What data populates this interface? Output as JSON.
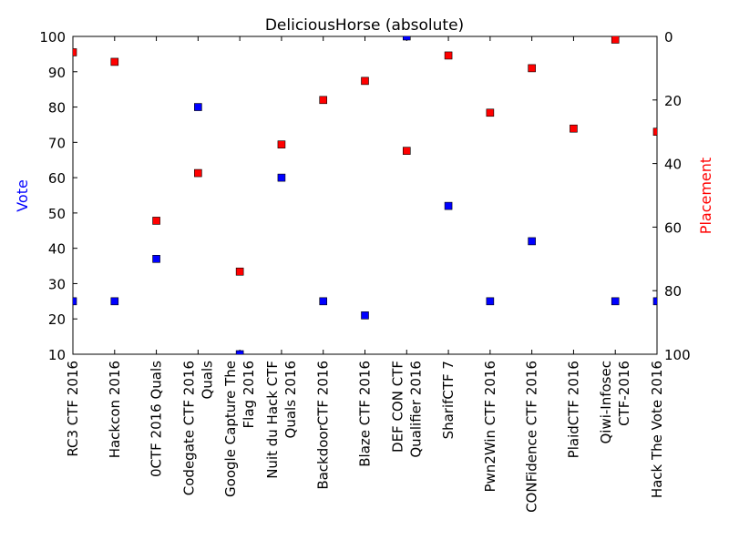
{
  "chart_data": {
    "type": "scatter",
    "title": "DeliciousHorse (absolute)",
    "ylabel_left": "Vote",
    "ylabel_right": "Placement",
    "ylim_left": [
      10,
      100
    ],
    "ylim_right_inverted": [
      100,
      0
    ],
    "left_ticks": [
      "10",
      "20",
      "30",
      "40",
      "50",
      "60",
      "70",
      "80",
      "90",
      "100"
    ],
    "right_ticks": [
      "0",
      "20",
      "40",
      "60",
      "80",
      "100"
    ],
    "grid": false,
    "categories": [
      [
        "RC3 CTF 2016"
      ],
      [
        "Hackcon 2016"
      ],
      [
        "0CTF 2016 Quals"
      ],
      [
        "Codegate CTF 2016",
        "Quals"
      ],
      [
        "Google Capture The",
        "Flag 2016"
      ],
      [
        "Nuit du Hack CTF",
        "Quals 2016"
      ],
      [
        "BackdoorCTF 2016"
      ],
      [
        "Blaze CTF 2016"
      ],
      [
        "DEF CON CTF",
        "Qualifier 2016"
      ],
      [
        "SharifCTF 7"
      ],
      [
        "Pwn2Win CTF 2016"
      ],
      [
        "CONFidence CTF 2016"
      ],
      [
        "PlaidCTF 2016"
      ],
      [
        "Qiwi-Infosec",
        "CTF-2016"
      ],
      [
        "Hack The Vote 2016"
      ]
    ],
    "series": [
      {
        "axis": "left",
        "color": "#0000ff",
        "marker": "square",
        "values": [
          25,
          25,
          37,
          80,
          10,
          60,
          25,
          21,
          100,
          52,
          25,
          42,
          null,
          25,
          25
        ]
      },
      {
        "axis": "right",
        "color": "#ff0000",
        "marker": "square",
        "values": [
          5,
          8,
          58,
          43,
          74,
          34,
          20,
          14,
          36,
          6,
          24,
          10,
          29,
          1,
          30
        ]
      }
    ]
  }
}
